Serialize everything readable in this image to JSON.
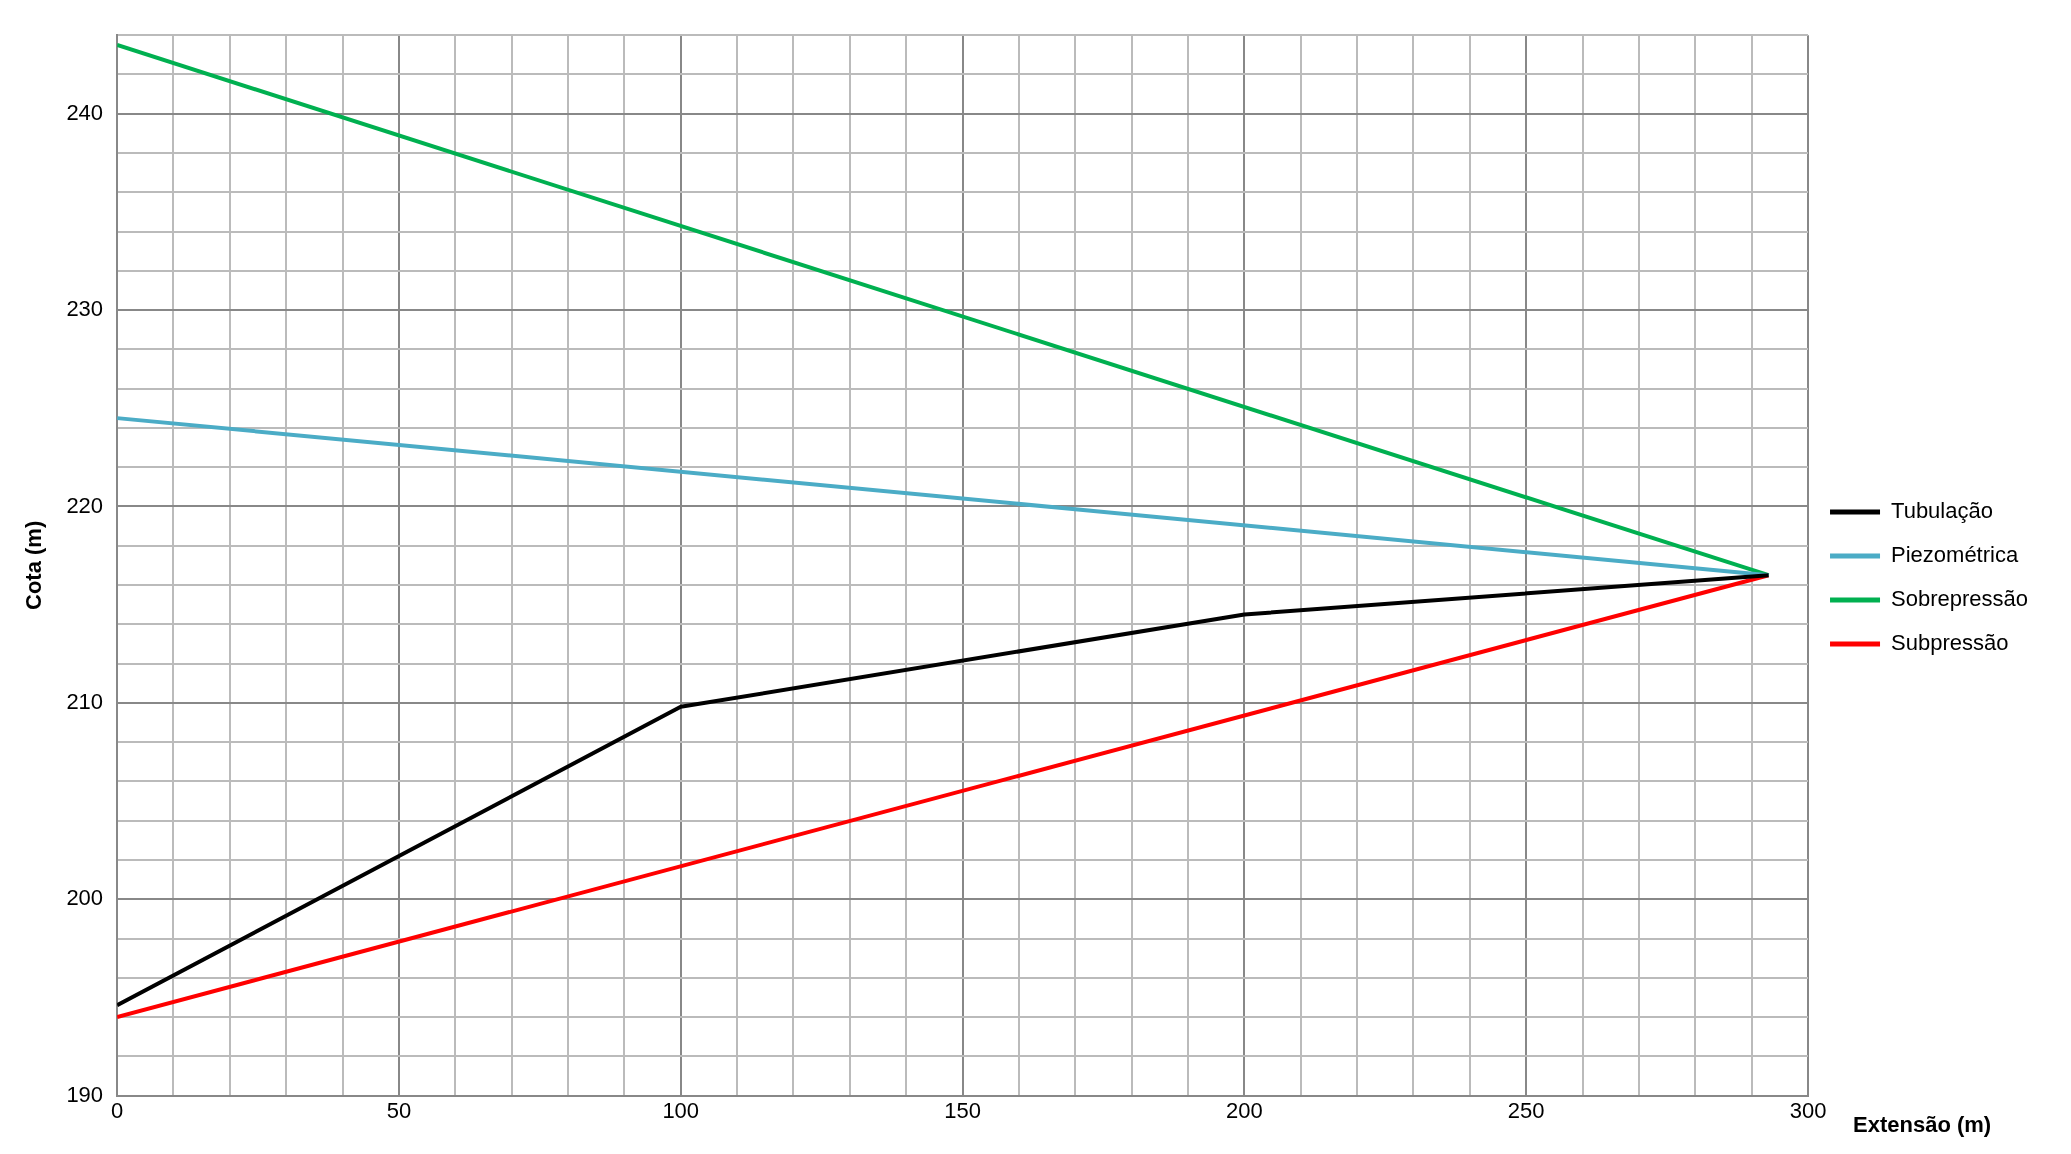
{
  "chart_data": {
    "type": "line",
    "xlabel": "Extensão (m)",
    "ylabel": "Cota (m)",
    "xlim": [
      0,
      300
    ],
    "ylim": [
      190,
      244
    ],
    "xticks": [
      0,
      {
        "value": 10,
        "label": null
      },
      {
        "value": 20,
        "label": null
      },
      {
        "value": 30,
        "label": null
      },
      {
        "value": 40,
        "label": null
      },
      50,
      {
        "value": 60,
        "label": null
      },
      {
        "value": 70,
        "label": null
      },
      {
        "value": 80,
        "label": null
      },
      {
        "value": 90,
        "label": null
      },
      100,
      {
        "value": 110,
        "label": null
      },
      {
        "value": 120,
        "label": null
      },
      {
        "value": 130,
        "label": null
      },
      {
        "value": 140,
        "label": null
      },
      150,
      {
        "value": 160,
        "label": null
      },
      {
        "value": 170,
        "label": null
      },
      {
        "value": 180,
        "label": null
      },
      {
        "value": 190,
        "label": null
      },
      200,
      {
        "value": 210,
        "label": null
      },
      {
        "value": 220,
        "label": null
      },
      {
        "value": 230,
        "label": null
      },
      {
        "value": 240,
        "label": null
      },
      250,
      {
        "value": 260,
        "label": null
      },
      {
        "value": 270,
        "label": null
      },
      {
        "value": 280,
        "label": null
      },
      {
        "value": 290,
        "label": null
      },
      300
    ],
    "yticks": [
      190,
      {
        "value": 192,
        "label": null
      },
      {
        "value": 194,
        "label": null
      },
      {
        "value": 196,
        "label": null
      },
      {
        "value": 198,
        "label": null
      },
      200,
      {
        "value": 202,
        "label": null
      },
      {
        "value": 204,
        "label": null
      },
      {
        "value": 206,
        "label": null
      },
      {
        "value": 208,
        "label": null
      },
      210,
      {
        "value": 212,
        "label": null
      },
      {
        "value": 214,
        "label": null
      },
      {
        "value": 216,
        "label": null
      },
      {
        "value": 218,
        "label": null
      },
      220,
      {
        "value": 222,
        "label": null
      },
      {
        "value": 224,
        "label": null
      },
      {
        "value": 226,
        "label": null
      },
      {
        "value": 228,
        "label": null
      },
      230,
      {
        "value": 232,
        "label": null
      },
      {
        "value": 234,
        "label": null
      },
      {
        "value": 236,
        "label": null
      },
      {
        "value": 238,
        "label": null
      },
      240,
      {
        "value": 242,
        "label": null
      },
      {
        "value": 244,
        "label": null
      }
    ],
    "grid": true,
    "legend": "right",
    "marker": "none",
    "line_style": "solid",
    "series": [
      {
        "name": "Tubulação",
        "color": "#000000",
        "x": [
          0,
          100,
          200,
          293
        ],
        "values": [
          194.6,
          209.8,
          214.5,
          216.5
        ]
      },
      {
        "name": "Piezométrica",
        "color": "#4bacc6",
        "x": [
          0,
          293
        ],
        "values": [
          224.5,
          216.5
        ]
      },
      {
        "name": "Sobrepressão",
        "color": "#00b050",
        "x": [
          0,
          293
        ],
        "values": [
          243.5,
          216.5
        ]
      },
      {
        "name": "Subpressão",
        "color": "#ff0000",
        "x": [
          0,
          293
        ],
        "values": [
          194,
          216.5
        ]
      }
    ]
  }
}
